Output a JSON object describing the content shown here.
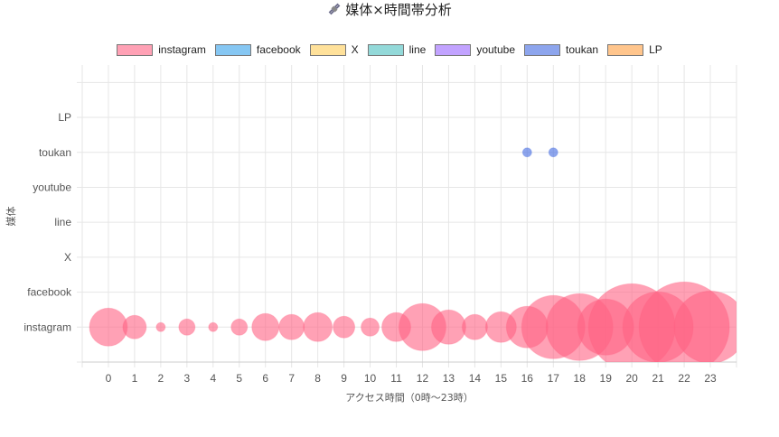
{
  "chart_data": {
    "type": "bubble",
    "title": "媒体×時間帯分析",
    "title_icon": "satellite-icon",
    "xlabel": "アクセス時間（0時〜23時）",
    "ylabel": "媒体",
    "x_ticks": [
      "0",
      "1",
      "2",
      "3",
      "4",
      "5",
      "6",
      "7",
      "8",
      "9",
      "10",
      "11",
      "12",
      "13",
      "14",
      "15",
      "16",
      "17",
      "18",
      "19",
      "20",
      "21",
      "22",
      "23"
    ],
    "categories": [
      "instagram",
      "facebook",
      "X",
      "line",
      "youtube",
      "toukan",
      "LP"
    ],
    "xlim": [
      -1,
      24
    ],
    "legend_position": "top",
    "series": [
      {
        "name": "instagram",
        "color": "#ff6384",
        "points": [
          {
            "x": 0,
            "y": "instagram",
            "r": 21
          },
          {
            "x": 1,
            "y": "instagram",
            "r": 13
          },
          {
            "x": 2,
            "y": "instagram",
            "r": 5
          },
          {
            "x": 3,
            "y": "instagram",
            "r": 9
          },
          {
            "x": 4,
            "y": "instagram",
            "r": 5
          },
          {
            "x": 5,
            "y": "instagram",
            "r": 9
          },
          {
            "x": 6,
            "y": "instagram",
            "r": 15
          },
          {
            "x": 7,
            "y": "instagram",
            "r": 14
          },
          {
            "x": 8,
            "y": "instagram",
            "r": 16
          },
          {
            "x": 9,
            "y": "instagram",
            "r": 12
          },
          {
            "x": 10,
            "y": "instagram",
            "r": 10
          },
          {
            "x": 11,
            "y": "instagram",
            "r": 16
          },
          {
            "x": 12,
            "y": "instagram",
            "r": 26
          },
          {
            "x": 13,
            "y": "instagram",
            "r": 19
          },
          {
            "x": 14,
            "y": "instagram",
            "r": 14
          },
          {
            "x": 15,
            "y": "instagram",
            "r": 17
          },
          {
            "x": 16,
            "y": "instagram",
            "r": 23
          },
          {
            "x": 17,
            "y": "instagram",
            "r": 35
          },
          {
            "x": 18,
            "y": "instagram",
            "r": 37
          },
          {
            "x": 19,
            "y": "instagram",
            "r": 31
          },
          {
            "x": 20,
            "y": "instagram",
            "r": 48
          },
          {
            "x": 21,
            "y": "instagram",
            "r": 39
          },
          {
            "x": 22,
            "y": "instagram",
            "r": 50
          },
          {
            "x": 23,
            "y": "instagram",
            "r": 40
          }
        ]
      },
      {
        "name": "facebook",
        "color": "#36a2eb",
        "points": []
      },
      {
        "name": "X",
        "color": "#ffcd56",
        "points": []
      },
      {
        "name": "line",
        "color": "#4bc0c0",
        "points": []
      },
      {
        "name": "youtube",
        "color": "#9966ff",
        "points": []
      },
      {
        "name": "toukan",
        "color": "#4169e1",
        "points": [
          {
            "x": 16,
            "y": "toukan",
            "r": 5
          },
          {
            "x": 17,
            "y": "toukan",
            "r": 5
          }
        ]
      },
      {
        "name": "LP",
        "color": "#ff9f40",
        "points": []
      }
    ]
  }
}
